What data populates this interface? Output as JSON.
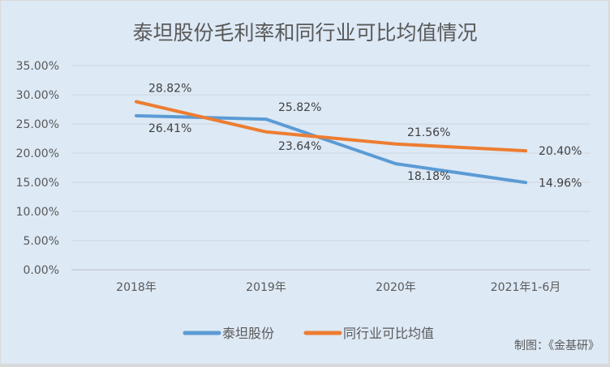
{
  "chart_data": {
    "type": "line",
    "title": "泰坦股份毛利率和同行业可比均值情况",
    "categories": [
      "2018年",
      "2019年",
      "2020年",
      "2021年1-6月"
    ],
    "series": [
      {
        "name": "泰坦股份",
        "values": [
          26.41,
          25.82,
          18.18,
          14.96
        ],
        "labels": [
          "26.41%",
          "25.82%",
          "18.18%",
          "14.96%"
        ],
        "color": "#5b9bd5"
      },
      {
        "name": "同行业可比均值",
        "values": [
          28.82,
          23.64,
          21.56,
          20.4
        ],
        "labels": [
          "28.82%",
          "23.64%",
          "21.56%",
          "20.40%"
        ],
        "color": "#ed7d31"
      }
    ],
    "yticks": [
      "0.00%",
      "5.00%",
      "10.00%",
      "15.00%",
      "20.00%",
      "25.00%",
      "30.00%",
      "35.00%"
    ],
    "ylim": [
      0,
      35
    ],
    "grid": true,
    "legend": "bottom",
    "xlabel": "",
    "ylabel": ""
  },
  "credit": "制图：《金基研》"
}
